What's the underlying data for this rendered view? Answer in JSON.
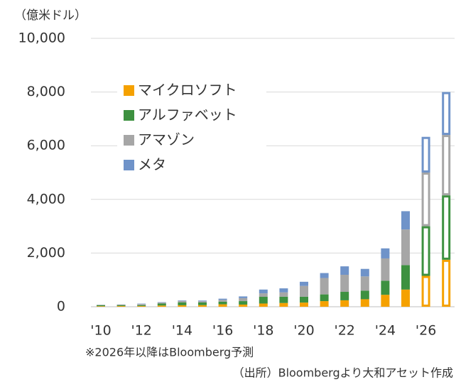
{
  "chart_data": {
    "type": "stacked_bar",
    "y_axis_label": "（億米ドル）",
    "categories": [
      "'10",
      null,
      "'12",
      null,
      "'14",
      null,
      "'16",
      null,
      "'18",
      null,
      "'20",
      null,
      "'22",
      null,
      "'24",
      null,
      "'26",
      null
    ],
    "forecast": [
      false,
      false,
      false,
      false,
      false,
      false,
      false,
      false,
      false,
      false,
      false,
      false,
      false,
      false,
      false,
      false,
      true,
      true
    ],
    "series": [
      {
        "name": "マイクロソフト",
        "color": "#f5a100",
        "values": [
          20,
          25,
          25,
          45,
          55,
          60,
          90,
          80,
          120,
          140,
          155,
          210,
          240,
          280,
          445,
          640,
          1150,
          1750
        ]
      },
      {
        "name": "アルファベット",
        "color": "#3d9140",
        "values": [
          40,
          35,
          35,
          75,
          110,
          100,
          100,
          130,
          250,
          235,
          220,
          250,
          315,
          320,
          525,
          910,
          1850,
          2400
        ]
      },
      {
        "name": "アマゾン",
        "color": "#a6a6a6",
        "values": [
          10,
          20,
          40,
          35,
          50,
          45,
          65,
          110,
          130,
          160,
          400,
          610,
          635,
          530,
          830,
          1330,
          2000,
          2250
        ]
      },
      {
        "name": "メタ",
        "color": "#6f93c9",
        "values": [
          5,
          6,
          15,
          14,
          19,
          25,
          45,
          65,
          140,
          150,
          155,
          185,
          315,
          280,
          375,
          680,
          1330,
          1600
        ]
      }
    ],
    "ylim": [
      0,
      10000
    ],
    "yticks": [
      0,
      {
        "value": 2000,
        "label": "2,000"
      },
      {
        "value": 4000,
        "label": "4,000"
      },
      {
        "value": 6000,
        "label": "6,000"
      },
      {
        "value": 8000,
        "label": "8,000"
      },
      {
        "value": 10000,
        "label": "10,000"
      }
    ],
    "grid": true,
    "legend": "upper left",
    "annotations": [
      "※2026年以降はBloomberg予測",
      "（出所）Bloombergより大和アセット作成"
    ]
  }
}
